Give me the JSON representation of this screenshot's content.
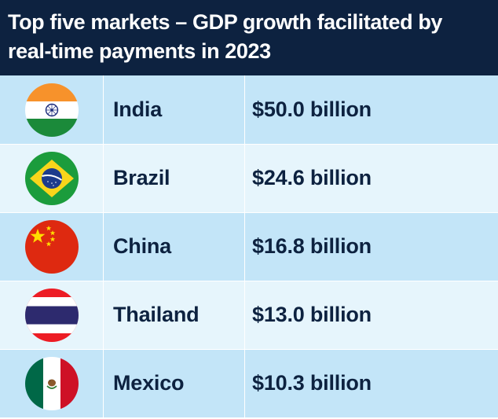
{
  "title": "Top five markets – GDP growth facilitated by real-time payments in 2023",
  "chart_data": {
    "type": "table",
    "title": "Top five markets – GDP growth facilitated by real-time payments in 2023",
    "columns": [
      "",
      "",
      ""
    ],
    "rows": [
      {
        "flag_icon": "india-flag-icon",
        "country": "India",
        "value_label": "$50.0 billion",
        "value": 50.0
      },
      {
        "flag_icon": "brazil-flag-icon",
        "country": "Brazil",
        "value_label": "$24.6 billion",
        "value": 24.6
      },
      {
        "flag_icon": "china-flag-icon",
        "country": "China",
        "value_label": "$16.8 billion",
        "value": 16.8
      },
      {
        "flag_icon": "thailand-flag-icon",
        "country": "Thailand",
        "value_label": "$13.0 billion",
        "value": 13.0
      },
      {
        "flag_icon": "mexico-flag-icon",
        "country": "Mexico",
        "value_label": "$10.3 billion",
        "value": 10.3
      }
    ]
  },
  "colors": {
    "header_bg": "#0d2240",
    "row_dark": "#c3e5f8",
    "row_light": "#e6f5fc",
    "text": "#0d2240"
  }
}
